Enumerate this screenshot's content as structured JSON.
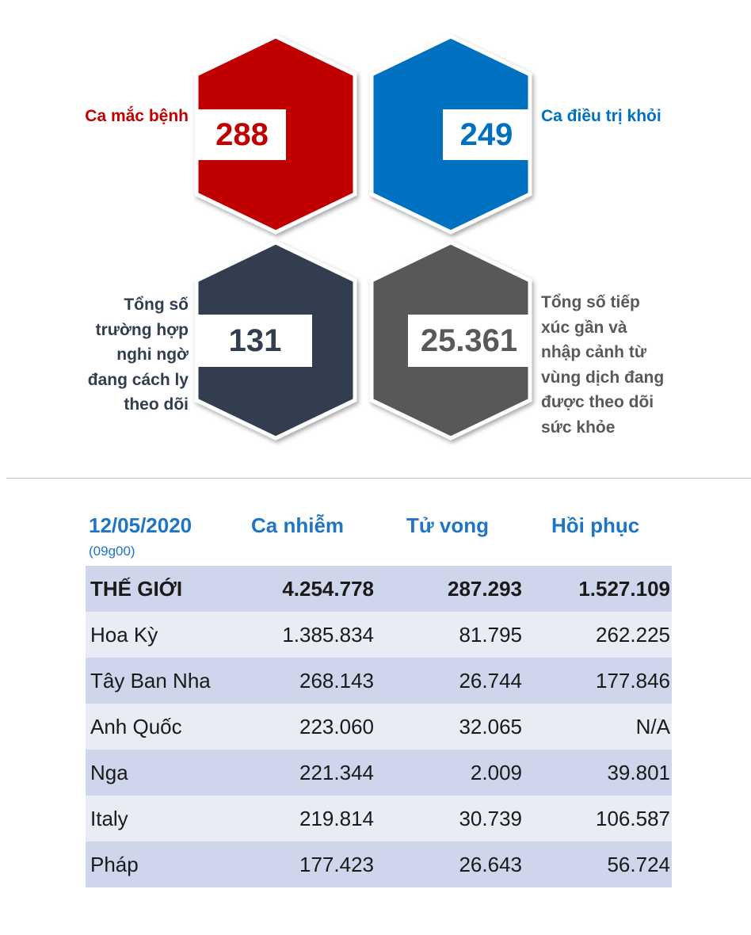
{
  "stats": {
    "cases": {
      "label": "Ca mắc bệnh",
      "value": "288",
      "color": "#c00000"
    },
    "recovered": {
      "label": "Ca điều trị khỏi",
      "value": "249",
      "color": "#0070c0"
    },
    "suspected": {
      "label_lines": [
        "Tổng số",
        "trường hợp",
        "nghi ngờ",
        "đang cách ly",
        "theo dõi"
      ],
      "value": "131",
      "color": "#323e4f"
    },
    "contacts": {
      "label_lines": [
        "Tổng số tiếp",
        "xúc gần và",
        "nhập cảnh từ",
        "vùng dịch đang",
        "được theo dõi",
        "sức khỏe"
      ],
      "value": "25.361",
      "color": "#595959"
    }
  },
  "table": {
    "date": "12/05/2020",
    "time": "(09g00)",
    "headers": [
      "Ca nhiễm",
      "Tử vong",
      "Hồi phục"
    ],
    "header_color": "#1f75c4",
    "rows": [
      {
        "name": "THẾ GIỚI",
        "cases": "4.254.778",
        "deaths": "287.293",
        "recovered": "1.527.109"
      },
      {
        "name": "Hoa Kỳ",
        "cases": "1.385.834",
        "deaths": "81.795",
        "recovered": "262.225"
      },
      {
        "name": "Tây Ban Nha",
        "cases": "268.143",
        "deaths": "26.744",
        "recovered": "177.846"
      },
      {
        "name": "Anh Quốc",
        "cases": "223.060",
        "deaths": "32.065",
        "recovered": "N/A"
      },
      {
        "name": "Nga",
        "cases": "221.344",
        "deaths": "2.009",
        "recovered": "39.801"
      },
      {
        "name": "Italy",
        "cases": "219.814",
        "deaths": "30.739",
        "recovered": "106.587"
      },
      {
        "name": "Pháp",
        "cases": "177.423",
        "deaths": "26.643",
        "recovered": "56.724"
      }
    ]
  }
}
